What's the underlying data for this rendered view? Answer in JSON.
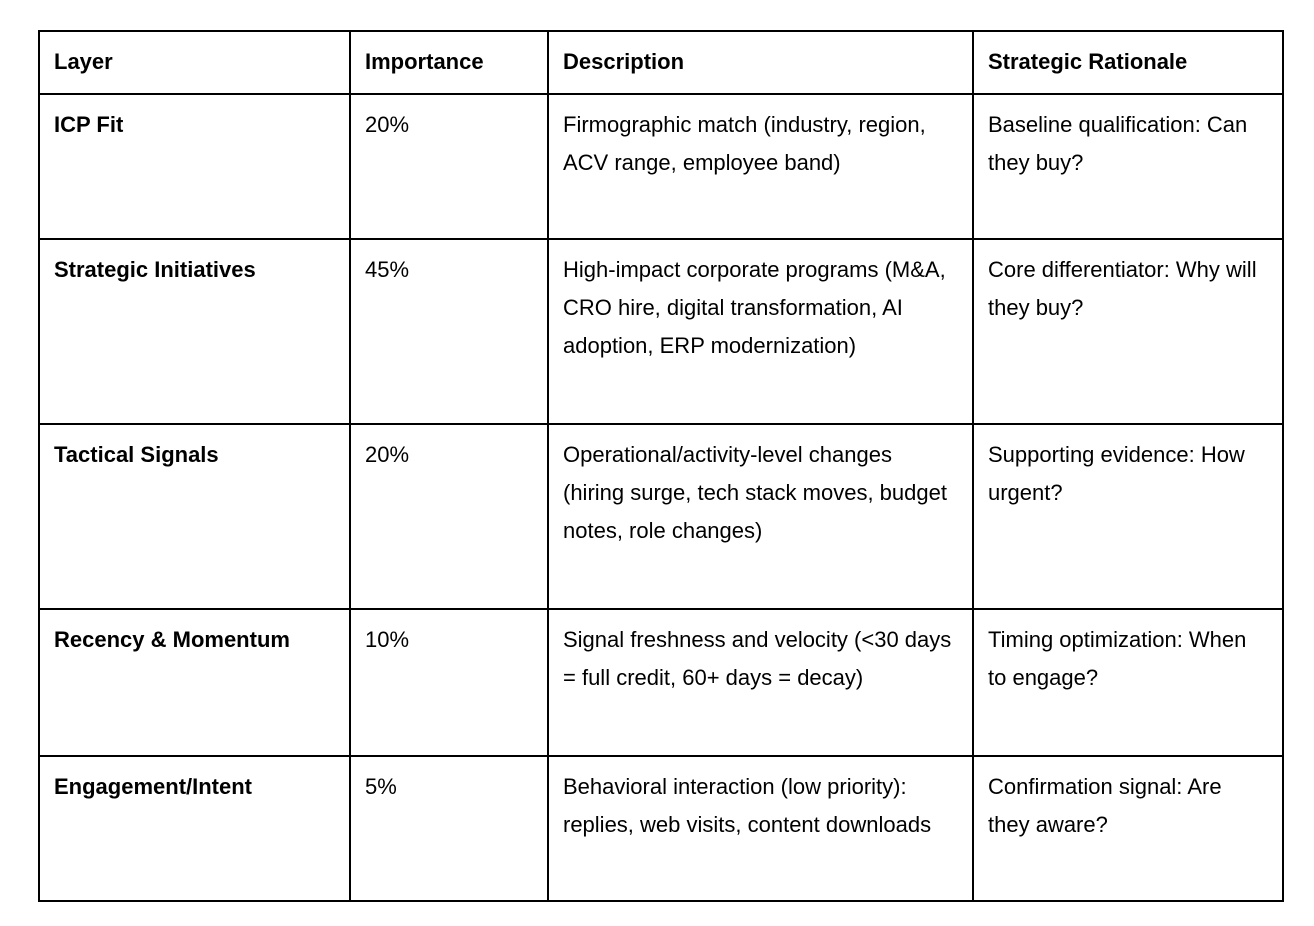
{
  "table": {
    "columns": [
      "Layer",
      "Importance",
      "Description",
      "Strategic Rationale"
    ],
    "rows": [
      {
        "layer": "ICP Fit",
        "importance": "20%",
        "description": "Firmographic match (industry, region, ACV range, employee band)",
        "rationale": "Baseline qualification: Can they buy?"
      },
      {
        "layer": "Strategic Initiatives",
        "importance": "45%",
        "description": "High-impact corporate programs (M&A, CRO hire, digital transformation, AI adoption, ERP modernization)",
        "rationale": "Core differentiator: Why will they buy?"
      },
      {
        "layer": "Tactical Signals",
        "importance": "20%",
        "description": "Operational/activity-level changes (hiring surge, tech stack moves, budget notes, role changes)",
        "rationale": "Supporting evidence: How urgent?"
      },
      {
        "layer": "Recency & Momentum",
        "importance": "10%",
        "description": "Signal freshness and velocity (<30 days = full credit, 60+ days = decay)",
        "rationale": "Timing optimization: When to engage?"
      },
      {
        "layer": "Engagement/Intent",
        "importance": "5%",
        "description": "Behavioral interaction (low priority): replies, web visits, content downloads",
        "rationale": "Confirmation signal: Are they aware?"
      }
    ]
  },
  "colors": {
    "border": "#000000",
    "background": "#ffffff",
    "text": "#000000"
  }
}
